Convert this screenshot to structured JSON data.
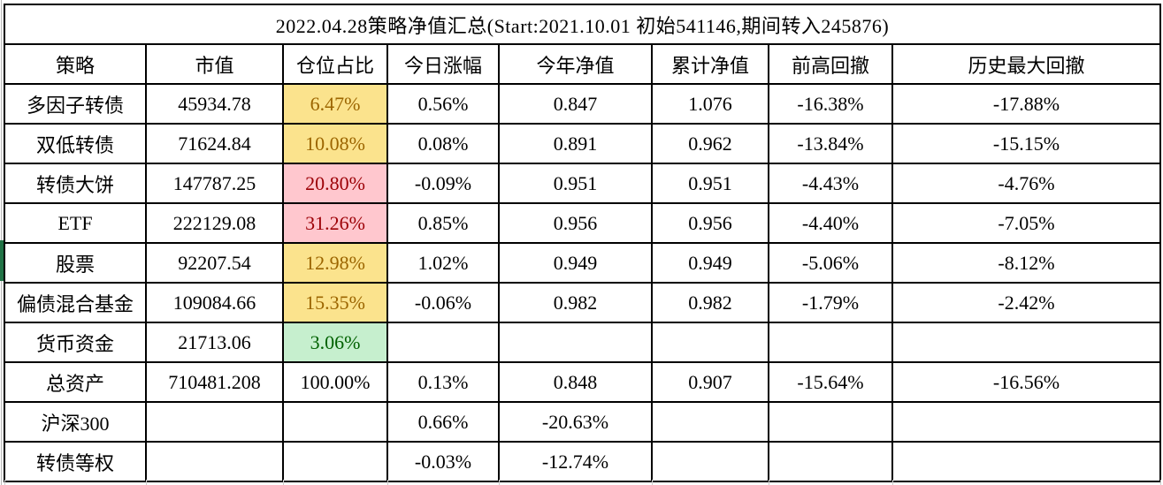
{
  "title": "2022.04.28策略净值汇总(Start:2021.10.01 初始541146,期间转入245876)",
  "table": {
    "columns": [
      "策略",
      "市值",
      "仓位占比",
      "今日涨幅",
      "今年净值",
      "累计净值",
      "前高回撤",
      "历史最大回撤"
    ],
    "rows": [
      {
        "highlight": "yellow",
        "cells": [
          "多因子转债",
          "45934.78",
          "6.47%",
          "0.56%",
          "0.847",
          "1.076",
          "-16.38%",
          "-17.88%"
        ]
      },
      {
        "highlight": "yellow",
        "cells": [
          "双低转债",
          "71624.84",
          "10.08%",
          "0.08%",
          "0.891",
          "0.962",
          "-13.84%",
          "-15.15%"
        ]
      },
      {
        "highlight": "pink",
        "cells": [
          "转债大饼",
          "147787.25",
          "20.80%",
          "-0.09%",
          "0.951",
          "0.951",
          "-4.43%",
          "-4.76%"
        ]
      },
      {
        "highlight": "pink",
        "cells": [
          "ETF",
          "222129.08",
          "31.26%",
          "0.85%",
          "0.956",
          "0.956",
          "-4.40%",
          "-7.05%"
        ]
      },
      {
        "highlight": "yellow",
        "cells": [
          "股票",
          "92207.54",
          "12.98%",
          "1.02%",
          "0.949",
          "0.949",
          "-5.06%",
          "-8.12%"
        ]
      },
      {
        "highlight": "yellow",
        "cells": [
          "偏债混合基金",
          "109084.66",
          "15.35%",
          "-0.06%",
          "0.982",
          "0.982",
          "-1.79%",
          "-2.42%"
        ]
      },
      {
        "highlight": "green",
        "cells": [
          "货币资金",
          "21713.06",
          "3.06%",
          "",
          "",
          "",
          "",
          ""
        ]
      },
      {
        "highlight": "none",
        "cells": [
          "总资产",
          "710481.208",
          "100.00%",
          "0.13%",
          "0.848",
          "0.907",
          "-15.64%",
          "-16.56%"
        ]
      },
      {
        "highlight": "none",
        "cells": [
          "沪深300",
          "",
          "",
          "0.66%",
          "-20.63%",
          "",
          "",
          ""
        ]
      },
      {
        "highlight": "none",
        "cells": [
          "转债等权",
          "",
          "",
          "-0.03%",
          "-12.74%",
          "",
          "",
          ""
        ]
      }
    ]
  },
  "colors": {
    "yellow_bg": "#FBE38D",
    "yellow_text": "#9C6500",
    "pink_bg": "#FFC7CE",
    "pink_text": "#9C0006",
    "green_bg": "#C6EFCE",
    "green_text": "#006100",
    "selection_bar": "#217346",
    "border": "#000000"
  }
}
